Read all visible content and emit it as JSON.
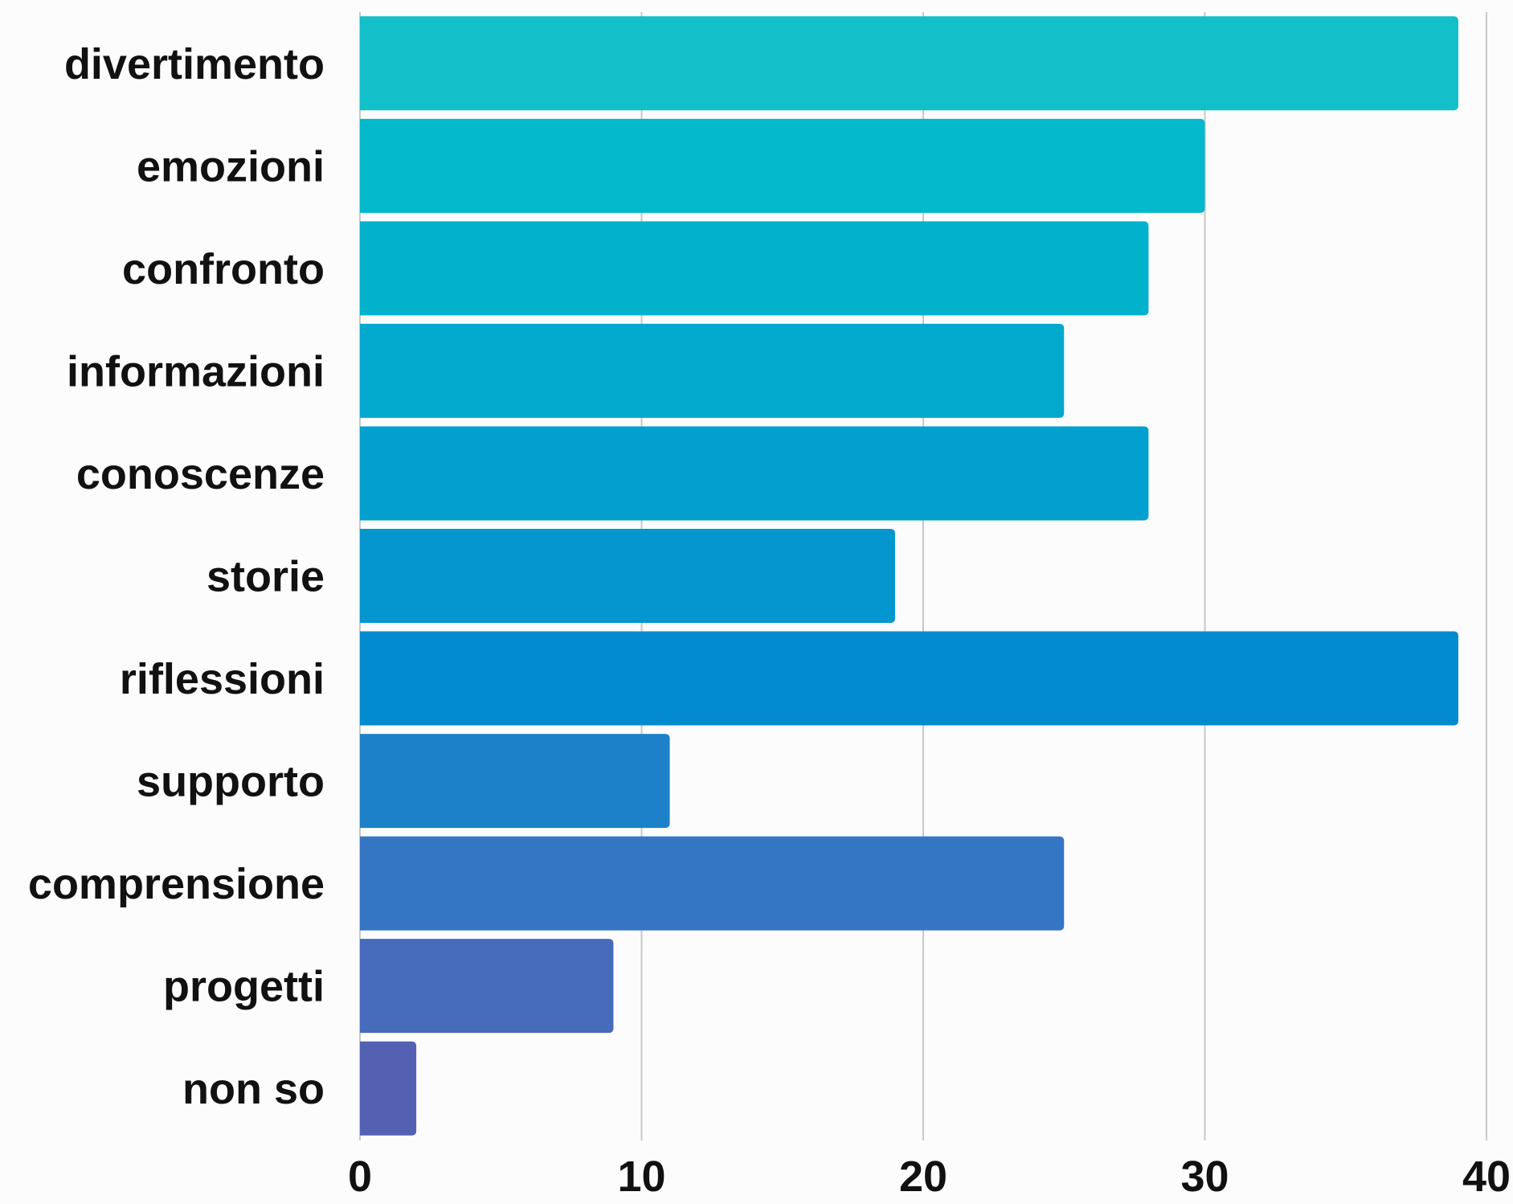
{
  "chart_data": {
    "type": "bar",
    "orientation": "horizontal",
    "categories": [
      "divertimento",
      "emozioni",
      "confronto",
      "informazioni",
      "conoscenze",
      "storie",
      "riflessioni",
      "supporto",
      "comprensione",
      "progetti",
      "non so"
    ],
    "values": [
      39,
      30,
      28,
      25,
      28,
      19,
      39,
      11,
      25,
      9,
      2
    ],
    "colors": [
      "#13bfc8",
      "#02b8cb",
      "#02b2cd",
      "#03a9cd",
      "#02a0ce",
      "#0396cf",
      "#028ace",
      "#1c81c8",
      "#3576c4",
      "#466bbb",
      "#5461b3"
    ],
    "xlim": [
      0,
      40
    ],
    "xticks": [
      0,
      10,
      20,
      30,
      40
    ],
    "grid": true,
    "title": "",
    "xlabel": "",
    "ylabel": ""
  }
}
